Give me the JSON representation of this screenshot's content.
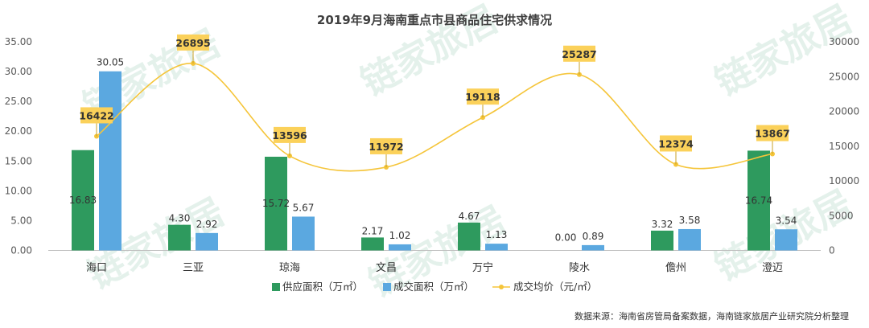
{
  "chart_data": {
    "type": "bar+line",
    "title": "2019年9月海南重点市县商品住宅供求情况",
    "categories": [
      "海口",
      "三亚",
      "琼海",
      "文昌",
      "万宁",
      "陵水",
      "儋州",
      "澄迈"
    ],
    "series": [
      {
        "name": "供应面积（万㎡）",
        "type": "bar",
        "axis": "left",
        "color": "#2e9a5e",
        "values": [
          16.83,
          4.3,
          15.72,
          2.17,
          4.67,
          0.0,
          3.32,
          16.74
        ],
        "labels": [
          "16.83",
          "4.30",
          "15.72",
          "2.17",
          "4.67",
          "0.00",
          "3.32",
          "16.74"
        ]
      },
      {
        "name": "成交面积（万㎡）",
        "type": "bar",
        "axis": "left",
        "color": "#5ba8e0",
        "values": [
          30.05,
          2.92,
          5.67,
          1.02,
          1.13,
          0.89,
          3.58,
          3.54
        ],
        "labels": [
          "30.05",
          "2.92",
          "5.67",
          "1.02",
          "1.13",
          "0.89",
          "3.58",
          "3.54"
        ]
      },
      {
        "name": "成交均价（元/㎡）",
        "type": "line",
        "axis": "right",
        "color": "#f5c53a",
        "values": [
          16422,
          26895,
          13596,
          11972,
          19118,
          25287,
          12374,
          13867
        ],
        "labels": [
          "16422",
          "26895",
          "13596",
          "11972",
          "19118",
          "25287",
          "12374",
          "13867"
        ]
      }
    ],
    "y_left": {
      "min": 0,
      "max": 35,
      "ticks": [
        "0.00",
        "5.00",
        "10.00",
        "15.00",
        "20.00",
        "25.00",
        "30.00",
        "35.00"
      ]
    },
    "y_right": {
      "min": 0,
      "max": 30000,
      "ticks": [
        "0",
        "5000",
        "10000",
        "15000",
        "20000",
        "25000",
        "30000"
      ]
    },
    "legend_position": "bottom",
    "source": "数据来源：海南省房管局备案数据，海南链家旅居产业研究院分析整理",
    "watermark": "链家旅居",
    "colors": {
      "supply": "#2e9a5e",
      "deal": "#5ba8e0",
      "price": "#f5c53a",
      "label_box": "#fbd15a"
    }
  }
}
